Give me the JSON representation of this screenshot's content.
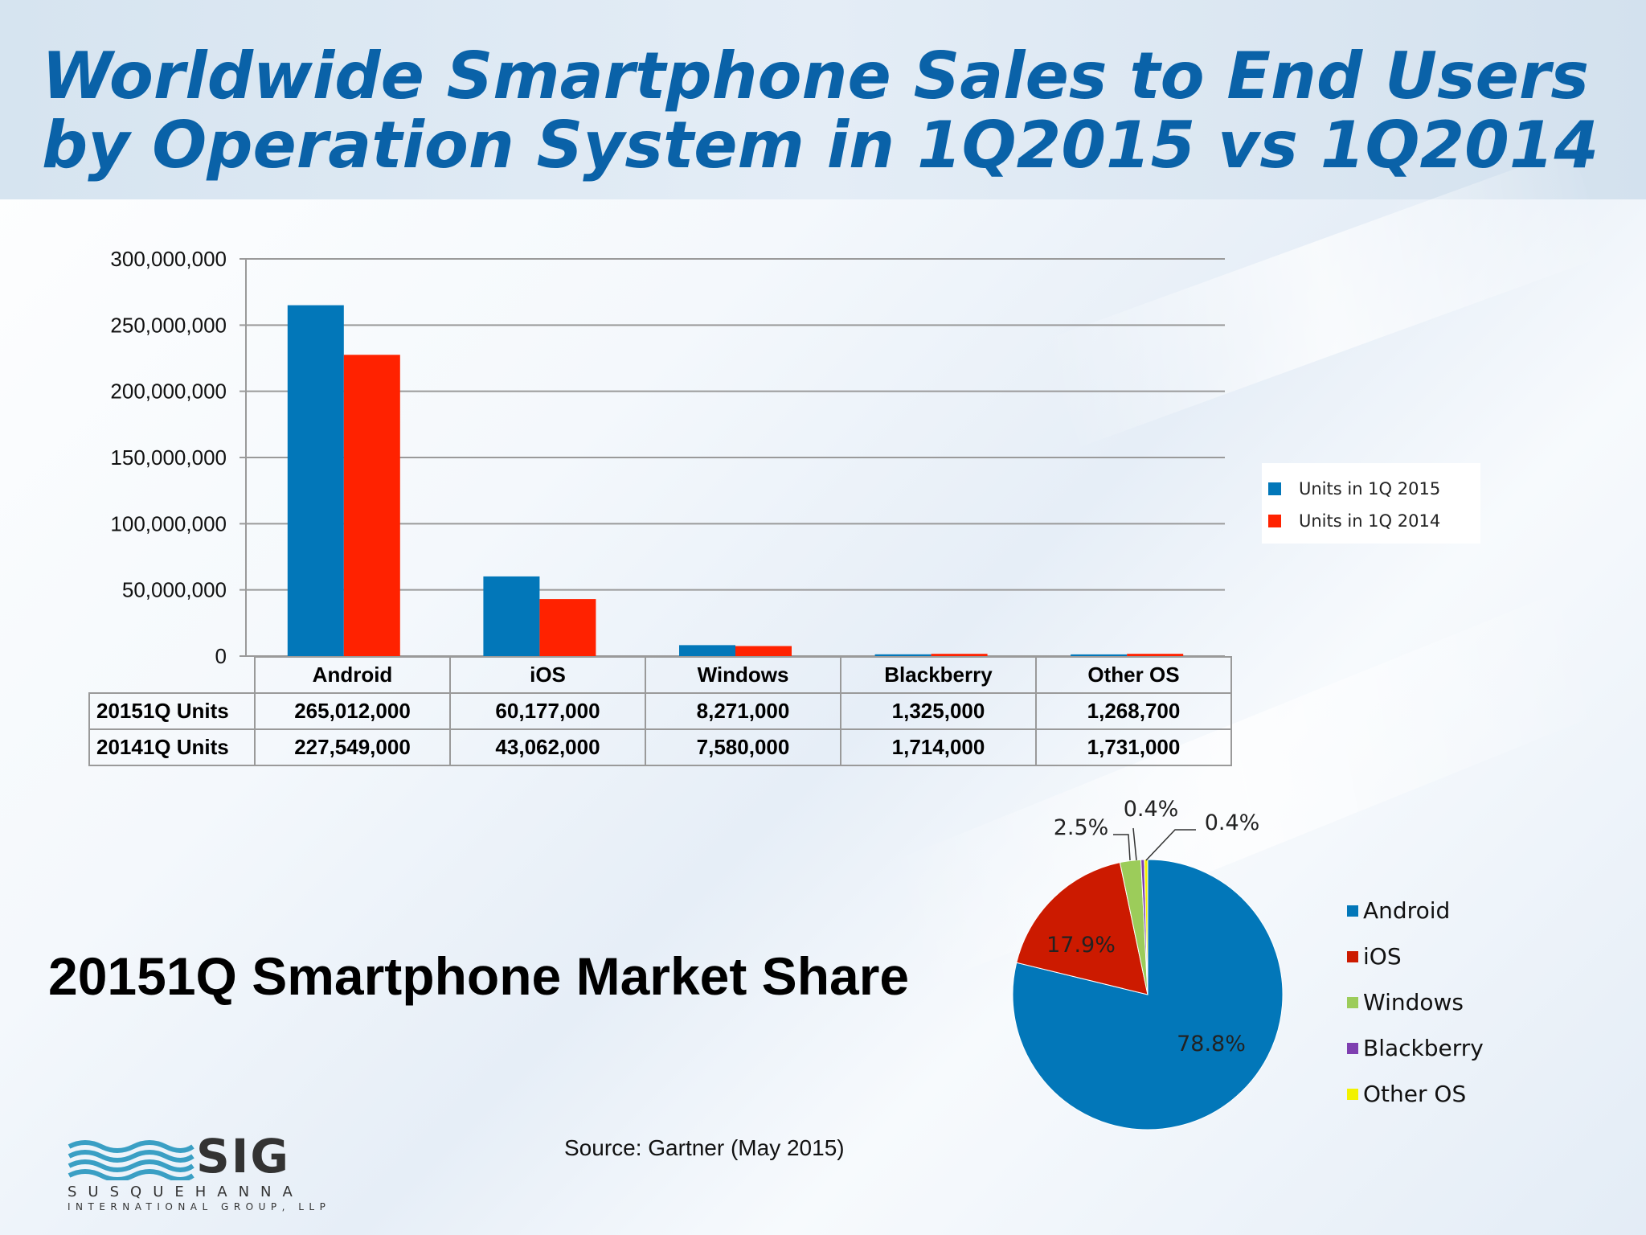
{
  "title": {
    "line1": "Worldwide Smartphone Sales to End Users",
    "line2": "by Operation System in 1Q2015 vs 1Q2014"
  },
  "chart_data": [
    {
      "type": "bar",
      "categories": [
        "Android",
        "iOS",
        "Windows",
        "Blackberry",
        "Other OS"
      ],
      "series": [
        {
          "name": "Units in 1Q 2015",
          "row_label": "20151Q Units",
          "color": "#0277b9",
          "values": [
            265012000,
            60177000,
            8271000,
            1325000,
            1268700
          ],
          "display": [
            "265,012,000",
            "60,177,000",
            "8,271,000",
            "1,325,000",
            "1,268,700"
          ]
        },
        {
          "name": "Units in 1Q 2014",
          "row_label": "20141Q Units",
          "color": "#ff2200",
          "values": [
            227549000,
            43062000,
            7580000,
            1714000,
            1731000
          ],
          "display": [
            "227,549,000",
            "43,062,000",
            "7,580,000",
            "1,714,000",
            "1,731,000"
          ]
        }
      ],
      "ylim": [
        0,
        300000000
      ],
      "yticks": [
        0,
        50000000,
        100000000,
        150000000,
        200000000,
        250000000,
        300000000
      ],
      "ytick_labels": [
        "0",
        "50,000,000",
        "100,000,000",
        "150,000,000",
        "200,000,000",
        "250,000,000",
        "300,000,000"
      ],
      "grid": true,
      "legend_position": "right"
    },
    {
      "type": "pie",
      "title": "20151Q Smartphone Market Share",
      "labels": [
        "Android",
        "iOS",
        "Windows",
        "Blackberry",
        "Other OS"
      ],
      "values": [
        78.8,
        17.9,
        2.5,
        0.4,
        0.4
      ],
      "value_labels": [
        "78.8%",
        "17.9%",
        "2.5%",
        "0.4%",
        "0.4%"
      ],
      "colors": [
        "#0277b9",
        "#cc1a00",
        "#9ccc5a",
        "#7e3fb0",
        "#f2f200"
      ],
      "legend_position": "right"
    }
  ],
  "source": "Source: Gartner (May 2015)",
  "logo": {
    "word": "SIG",
    "line1": "SUSQUEHANNA",
    "line2": "INTERNATIONAL GROUP, LLP"
  }
}
